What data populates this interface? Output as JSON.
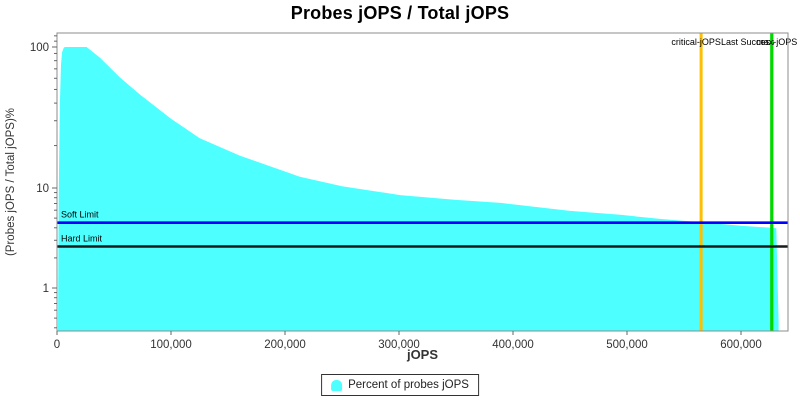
{
  "chart_data": {
    "type": "area",
    "title": "Probes jOPS / Total jOPS",
    "xlabel": "jOPS",
    "ylabel": "(Probes jOPS / Total jOPS)%",
    "y_scale": "log",
    "grid": false,
    "xlim": [
      0,
      641000
    ],
    "ylim": [
      0.38,
      126
    ],
    "x_ticks": [
      0,
      100000,
      200000,
      300000,
      400000,
      500000,
      600000
    ],
    "y_major_ticks": [
      100,
      10,
      1
    ],
    "y_minor_ticks": [
      120,
      110,
      90,
      80,
      70,
      60,
      50,
      40,
      30,
      20,
      9,
      8,
      7,
      6,
      5,
      4,
      3,
      2,
      0.9,
      0.8,
      0.7,
      0.6,
      0.5,
      0.4
    ],
    "series": [
      {
        "name": "Percent of probes jOPS",
        "color": "#4DFFFF",
        "points": [
          [
            900,
            0.38
          ],
          [
            1500,
            8
          ],
          [
            2500,
            40
          ],
          [
            3500,
            75
          ],
          [
            4500,
            92
          ],
          [
            6000,
            99
          ],
          [
            7000,
            100
          ],
          [
            26000,
            100
          ],
          [
            37700,
            84
          ],
          [
            55000,
            61
          ],
          [
            72800,
            46
          ],
          [
            100000,
            31
          ],
          [
            125000,
            22.6
          ],
          [
            160000,
            17
          ],
          [
            213000,
            12
          ],
          [
            250000,
            10.3
          ],
          [
            301000,
            8.5
          ],
          [
            350000,
            7.6
          ],
          [
            389000,
            7.1
          ],
          [
            450000,
            5.9
          ],
          [
            494000,
            5.4
          ],
          [
            530000,
            4.9
          ],
          [
            565000,
            4.55
          ],
          [
            600000,
            4.2
          ],
          [
            627000,
            4.0
          ],
          [
            631000,
            3.95
          ],
          [
            633000,
            0.45
          ]
        ]
      }
    ],
    "reference_lines": {
      "horizontal": [
        {
          "label": "Soft Limit",
          "value": 4.5,
          "color": "#0000FF"
        },
        {
          "label": "Hard Limit",
          "value": 2.6,
          "color": "#1A1A1A"
        }
      ],
      "vertical": [
        {
          "label": "critical-jOPS",
          "value": 565000,
          "color": "#FFBF00"
        },
        {
          "label": "Last Success",
          "value": 627000,
          "color": "#00D800"
        },
        {
          "label": "max-jOPS",
          "value": 627000,
          "color": "#00D800"
        }
      ]
    },
    "legend": {
      "label": "Percent of probes jOPS",
      "marker_color": "#4DFFFF",
      "position": "bottom"
    }
  }
}
